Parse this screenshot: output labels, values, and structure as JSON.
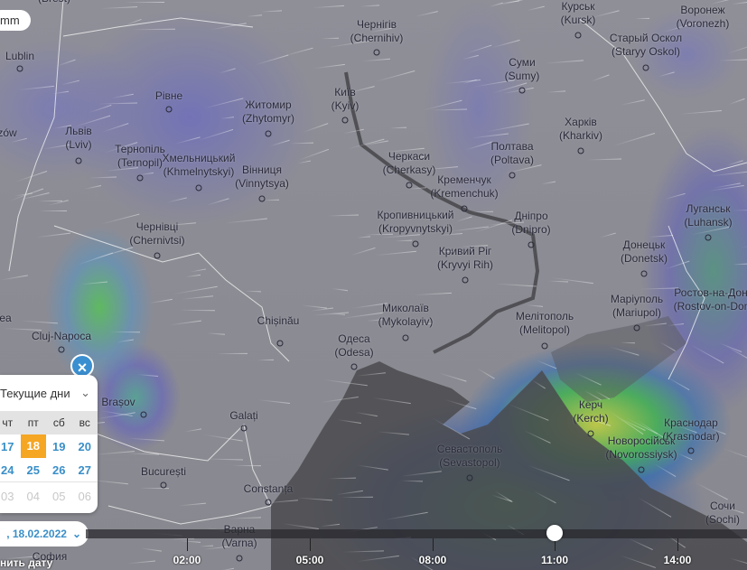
{
  "map": {
    "unit_badge": "mm",
    "cities": [
      {
        "name": "(Brest)"
      },
      {
        "name": "Lublin"
      },
      {
        "name": "zów"
      },
      {
        "name": "Львів",
        "latin": "(Lviv)"
      },
      {
        "name": "Рівне"
      },
      {
        "name": "Тернопіль",
        "latin": "(Ternopil)"
      },
      {
        "name": "Хмельницький",
        "latin": "(Khmelnytskyi)"
      },
      {
        "name": "Житомир",
        "latin": "(Zhytomyr)"
      },
      {
        "name": "Вінниця",
        "latin": "(Vinnytsya)"
      },
      {
        "name": "Чернігів",
        "latin": "(Chernihiv)"
      },
      {
        "name": "Київ",
        "latin": "(Kyiv)"
      },
      {
        "name": "Черкаси",
        "latin": "(Cherkasy)"
      },
      {
        "name": "Кременчук",
        "latin": "(Kremenchuk)"
      },
      {
        "name": "Полтава",
        "latin": "(Poltava)"
      },
      {
        "name": "Суми",
        "latin": "(Sumy)"
      },
      {
        "name": "Курськ",
        "latin": "(Kursk)"
      },
      {
        "name": "Старый Оскол",
        "latin": "(Staryy Oskol)"
      },
      {
        "name": "Воронеж",
        "latin": "(Voronezh)"
      },
      {
        "name": "Харків",
        "latin": "(Kharkiv)"
      },
      {
        "name": "Кропивницький",
        "latin": "(Kropyvnytskyi)"
      },
      {
        "name": "Дніпро",
        "latin": "(Dnipro)"
      },
      {
        "name": "Кривий Ріг",
        "latin": "(Kryvyi Rih)"
      },
      {
        "name": "Луганськ",
        "latin": "(Luhansk)"
      },
      {
        "name": "Донецьк",
        "latin": "(Donetsk)"
      },
      {
        "name": "Маріуполь",
        "latin": "(Mariupol)"
      },
      {
        "name": "Ростов-на-Дону",
        "latin": "(Rostov-on-Don)"
      },
      {
        "name": "Мелітополь",
        "latin": "(Melitopol)"
      },
      {
        "name": "Миколаїв",
        "latin": "(Mykolayiv)"
      },
      {
        "name": "Одеса",
        "latin": "(Odesa)"
      },
      {
        "name": "Chișinău"
      },
      {
        "name": "Чернівці",
        "latin": "(Chernivtsi)"
      },
      {
        "name": "Cluj-Napoca"
      },
      {
        "name": "ea"
      },
      {
        "name": "Brașov"
      },
      {
        "name": "Galați"
      },
      {
        "name": "București"
      },
      {
        "name": "Constanța"
      },
      {
        "name": "Варна",
        "latin": "(Varna)"
      },
      {
        "name": "София"
      },
      {
        "name": "Севастополь",
        "latin": "(Sevastopol)"
      },
      {
        "name": "Керч",
        "latin": "(Kerch)"
      },
      {
        "name": "Новоросійськ",
        "latin": "(Novorossiysk)"
      },
      {
        "name": "Краснодар",
        "latin": "(Krasnodar)"
      },
      {
        "name": "Сочи",
        "latin": "(Sochi)"
      }
    ]
  },
  "calendar": {
    "close_icon": "close-icon",
    "range_select": "Текущие дни",
    "weekdays": [
      "чт",
      "пт",
      "сб",
      "вс"
    ],
    "weeks": [
      [
        "17",
        "18",
        "19",
        "20"
      ],
      [
        "24",
        "25",
        "26",
        "27"
      ]
    ],
    "next_month_days": [
      "03",
      "04",
      "05",
      "06"
    ],
    "selected_day": "18",
    "accent_color": "#3a8fc8",
    "selected_color": "#f5a623"
  },
  "date_picker": {
    "value": ", 18.02.2022",
    "change_date_label": "нить дату"
  },
  "timeline": {
    "labels": [
      "02:00",
      "05:00",
      "08:00",
      "11:00",
      "14:00"
    ],
    "current_time": "11:00"
  }
}
